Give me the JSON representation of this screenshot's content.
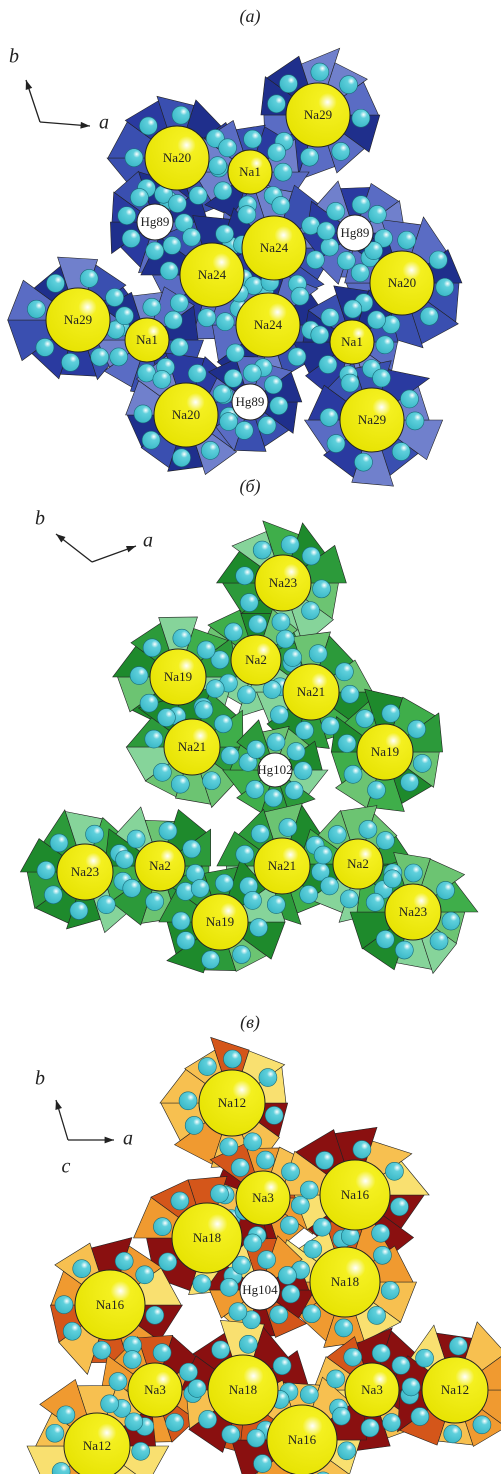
{
  "panels": [
    {
      "label": "(а)",
      "axes": [
        "b",
        "a"
      ],
      "atoms": [
        "Na29",
        "Na20",
        "Na1",
        "Hg89",
        "Na24",
        "Hg89",
        "Na24",
        "Na20",
        "Na29",
        "Na1",
        "Na24",
        "Na1",
        "Na20",
        "Hg89",
        "Na29"
      ]
    },
    {
      "label": "(б)",
      "axes": [
        "b",
        "a"
      ],
      "atoms": [
        "Na23",
        "Na2",
        "Na19",
        "Na21",
        "Na21",
        "Na19",
        "Hg102",
        "Na23",
        "Na2",
        "Na21",
        "Na2",
        "Na19",
        "Na23"
      ]
    },
    {
      "label": "(в)",
      "axes": [
        "b",
        "a",
        "c"
      ],
      "atoms": [
        "Na12",
        "Na3",
        "Na16",
        "Na18",
        "Na18",
        "Na16",
        "Hg104",
        "Na3",
        "Na18",
        "Na3",
        "Na12",
        "Na12",
        "Na16"
      ]
    }
  ]
}
